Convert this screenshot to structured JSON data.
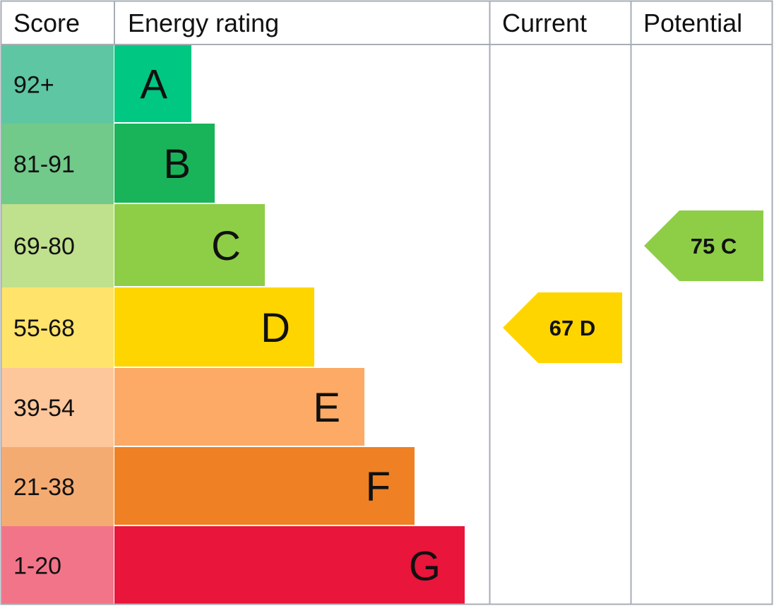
{
  "headers": {
    "score": "Score",
    "energy_rating": "Energy rating",
    "current": "Current",
    "potential": "Potential"
  },
  "chart_data": {
    "type": "bar",
    "categories": [
      "A",
      "B",
      "C",
      "D",
      "E",
      "F",
      "G"
    ],
    "bands": [
      {
        "letter": "A",
        "range": "92+",
        "min": 92,
        "max": 100,
        "color": "#00c781",
        "score_color": "#5ec6a2"
      },
      {
        "letter": "B",
        "range": "81-91",
        "min": 81,
        "max": 91,
        "color": "#19b459",
        "score_color": "#71c98a"
      },
      {
        "letter": "C",
        "range": "69-80",
        "min": 69,
        "max": 80,
        "color": "#8dce46",
        "score_color": "#bfe08c"
      },
      {
        "letter": "D",
        "range": "55-68",
        "min": 55,
        "max": 68,
        "color": "#ffd500",
        "score_color": "#ffe36a"
      },
      {
        "letter": "E",
        "range": "39-54",
        "min": 39,
        "max": 54,
        "color": "#fcaa65",
        "score_color": "#fec79b"
      },
      {
        "letter": "F",
        "range": "21-38",
        "min": 21,
        "max": 38,
        "color": "#ef8023",
        "score_color": "#f4ab72"
      },
      {
        "letter": "G",
        "range": "1-20",
        "min": 1,
        "max": 20,
        "color": "#e9153b",
        "score_color": "#f27489"
      }
    ],
    "current": {
      "value": 67,
      "band": "D",
      "label": "67 D",
      "color": "#ffd500"
    },
    "potential": {
      "value": 75,
      "band": "C",
      "label": "75 C",
      "color": "#8dce46"
    },
    "colors": {
      "border": "#a7adb6",
      "text": "#111111"
    }
  }
}
